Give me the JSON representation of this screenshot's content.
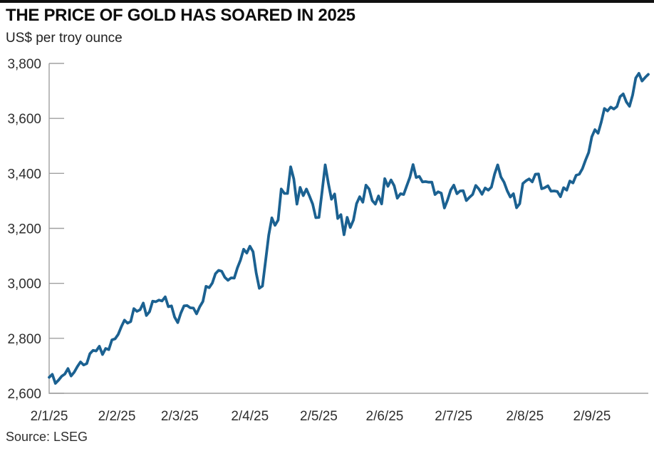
{
  "header": {
    "title": "THE PRICE OF GOLD HAS SOARED IN 2025",
    "subtitle": "US$ per troy ounce"
  },
  "footer": {
    "source": "Source: LSEG"
  },
  "colors": {
    "line": "#1b6191",
    "axis": "#a0a0a0",
    "tick_label": "#2e2e2e",
    "top_rule": "#101010"
  },
  "chart_data": {
    "type": "line",
    "title": "THE PRICE OF GOLD HAS SOARED IN 2025",
    "ylabel": "US$ per troy ounce",
    "xlabel": "",
    "grid": false,
    "legend": "none",
    "ylim": [
      2600,
      3800
    ],
    "y_ticks": [
      {
        "value": 2600,
        "label": "2,600"
      },
      {
        "value": 2800,
        "label": "2,800"
      },
      {
        "value": 3000,
        "label": "3,000"
      },
      {
        "value": 3200,
        "label": "3,200"
      },
      {
        "value": 3400,
        "label": "3,400"
      },
      {
        "value": 3600,
        "label": "3,600"
      },
      {
        "value": 3800,
        "label": "3,800"
      }
    ],
    "x_ticks": [
      {
        "f": 0.0,
        "label": "2/1/25"
      },
      {
        "f": 0.113,
        "label": "2/2/25"
      },
      {
        "f": 0.218,
        "label": "2/3/25"
      },
      {
        "f": 0.335,
        "label": "2/4/25"
      },
      {
        "f": 0.45,
        "label": "2/5/25"
      },
      {
        "f": 0.56,
        "label": "2/6/25"
      },
      {
        "f": 0.675,
        "label": "2/7/25"
      },
      {
        "f": 0.794,
        "label": "2/8/25"
      },
      {
        "f": 0.906,
        "label": "2/9/25"
      }
    ],
    "series": [
      {
        "name": "Gold price, US$ per troy ounce (daily, Jan–Sep 2025)",
        "color": "#1b6191",
        "values": [
          2658,
          2669,
          2636,
          2648,
          2662,
          2670,
          2690,
          2663,
          2677,
          2697,
          2714,
          2703,
          2708,
          2744,
          2756,
          2754,
          2771,
          2741,
          2763,
          2759,
          2794,
          2798,
          2814,
          2842,
          2866,
          2855,
          2861,
          2908,
          2898,
          2904,
          2928,
          2883,
          2897,
          2935,
          2933,
          2939,
          2936,
          2951,
          2915,
          2918,
          2877,
          2857,
          2892,
          2918,
          2919,
          2911,
          2910,
          2889,
          2915,
          2934,
          2989,
          2984,
          3001,
          3035,
          3047,
          3044,
          3022,
          3011,
          3020,
          3019,
          3056,
          3085,
          3124,
          3110,
          3135,
          3115,
          3038,
          2982,
          2990,
          3082,
          3175,
          3238,
          3211,
          3230,
          3343,
          3327,
          3327,
          3424,
          3380,
          3288,
          3349,
          3319,
          3343,
          3317,
          3288,
          3239,
          3240,
          3334,
          3431,
          3364,
          3306,
          3325,
          3236,
          3250,
          3177,
          3240,
          3203,
          3230,
          3290,
          3315,
          3295,
          3357,
          3343,
          3301,
          3288,
          3318,
          3289,
          3381,
          3353,
          3376,
          3355,
          3310,
          3326,
          3323,
          3355,
          3386,
          3432,
          3385,
          3389,
          3369,
          3370,
          3368,
          3368,
          3323,
          3333,
          3328,
          3274,
          3303,
          3339,
          3357,
          3326,
          3336,
          3337,
          3301,
          3313,
          3323,
          3356,
          3343,
          3324,
          3347,
          3339,
          3350,
          3397,
          3431,
          3387,
          3368,
          3337,
          3314,
          3326,
          3275,
          3290,
          3363,
          3373,
          3380,
          3369,
          3397,
          3398,
          3344,
          3348,
          3355,
          3335,
          3336,
          3334,
          3315,
          3348,
          3339,
          3372,
          3365,
          3393,
          3397,
          3417,
          3448,
          3476,
          3533,
          3559,
          3546,
          3587,
          3636,
          3627,
          3641,
          3634,
          3643,
          3679,
          3689,
          3660,
          3644,
          3685,
          3747,
          3764,
          3736,
          3749,
          3760
        ]
      }
    ]
  }
}
